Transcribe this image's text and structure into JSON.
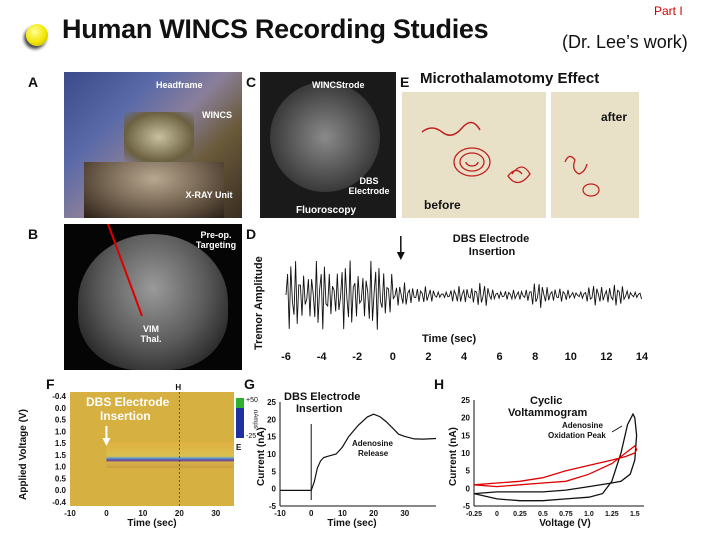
{
  "header": {
    "title": "Human WINCS Recording Studies",
    "subtitle": "(Dr. Lee’s work)",
    "part": "Part I"
  },
  "panels": {
    "A": {
      "letter": "A",
      "headframe": "Headframe",
      "wincs": "WINCS",
      "xray": "X-RAY Unit"
    },
    "B": {
      "letter": "B",
      "preop": "Pre-op. Targeting",
      "vim": "VIM Thal."
    },
    "C": {
      "letter": "C",
      "wincstrode": "WINCStrode",
      "dbs": "DBS Electrode",
      "fluoro": "Fluoroscopy"
    },
    "D": {
      "letter": "D"
    },
    "E": {
      "letter": "E",
      "title": "Microthalamotomy Effect",
      "before": "before",
      "after": "after"
    },
    "F": {
      "letter": "F"
    },
    "G": {
      "letter": "G"
    },
    "H": {
      "letter": "H"
    }
  },
  "chart_data": [
    {
      "panel": "D",
      "type": "line",
      "title": "",
      "xlabel": "Time (sec)",
      "ylabel": "Tremor Amplitude",
      "xlim": [
        -6,
        14
      ],
      "xticks": [
        -6,
        -4,
        -2,
        0,
        2,
        4,
        6,
        8,
        10,
        12,
        14
      ],
      "annotation": "DBS Electrode Insertion",
      "annotation_x": 0,
      "pre_insertion_amplitude": 1.0,
      "post_insertion_amplitude": 0.25
    },
    {
      "panel": "F",
      "type": "heatmap",
      "title": "",
      "xlabel": "Time (sec)",
      "ylabel": "Applied Voltage (V)",
      "xlim": [
        -10,
        35
      ],
      "xticks": [
        -10,
        0,
        10,
        20,
        30
      ],
      "yticks": [
        "-0.4",
        "0.0",
        "0.5",
        "1.0",
        "1.5",
        "1.5",
        "1.0",
        "0.5",
        "0.0",
        "-0.4"
      ],
      "colorbar_ticks": [
        "+50",
        "-25"
      ],
      "colorbar_label": "nAmps",
      "annotation": "DBS Electrode Insertion",
      "annotation_x": 0,
      "marker_top": "H",
      "marker_side": "E"
    },
    {
      "panel": "G",
      "type": "line",
      "title": "",
      "xlabel": "Time (sec)",
      "ylabel": "Current (nA)",
      "xlim": [
        -10,
        40
      ],
      "ylim": [
        -5,
        25
      ],
      "xticks": [
        -10,
        0,
        10,
        20,
        30
      ],
      "yticks": [
        -5,
        0,
        5,
        10,
        15,
        20,
        25
      ],
      "annotations": [
        "DBS Electrode Insertion",
        "Adenosine Release"
      ],
      "series": [
        {
          "x": [
            -10,
            -5,
            0,
            1,
            2,
            3,
            4,
            6,
            8,
            10,
            12,
            15,
            18,
            20,
            22,
            24,
            26,
            28,
            30,
            33,
            36,
            40
          ],
          "y": [
            -0.5,
            -0.5,
            -0.5,
            2,
            6,
            8,
            9,
            9.5,
            10,
            12,
            15,
            19,
            21,
            21,
            20,
            19,
            18,
            16.5,
            15.5,
            14,
            13.5,
            14
          ]
        }
      ]
    },
    {
      "panel": "H",
      "type": "line",
      "title": "Cyclic Voltammogram",
      "xlabel": "Voltage (V)",
      "ylabel": "Current (nA)",
      "xlim": [
        -0.25,
        1.6
      ],
      "ylim": [
        -5,
        25
      ],
      "xticks": [
        "-0.25",
        "0",
        "0.25",
        "0.5",
        "0.75",
        "1.0",
        "1.25",
        "1.5"
      ],
      "yticks": [
        -5,
        0,
        5,
        10,
        15,
        20,
        25
      ],
      "annotation": "Adenosine Oxidation Peak",
      "series": [
        {
          "color": "#111111",
          "x": [
            -0.25,
            0,
            0.25,
            0.5,
            0.75,
            1.0,
            1.15,
            1.25,
            1.35,
            1.42,
            1.48,
            1.5,
            1.52,
            1.5,
            1.45,
            1.35,
            1.25,
            1.0,
            0.75,
            0.5,
            0.25,
            0,
            -0.25
          ],
          "y": [
            -1.5,
            -3,
            -3.5,
            -3.5,
            -3,
            -2.5,
            -1.5,
            2,
            10,
            18,
            21,
            20,
            15,
            8,
            4,
            2,
            1.5,
            0.5,
            -0.5,
            -1,
            -1,
            -1,
            -1.5
          ]
        },
        {
          "color": "#e00000",
          "x": [
            -0.25,
            0,
            0.25,
            0.5,
            0.75,
            1.0,
            1.25,
            1.4,
            1.5,
            1.52,
            1.5,
            1.4,
            1.25,
            1.0,
            0.75,
            0.5,
            0.25,
            0,
            -0.25
          ],
          "y": [
            1,
            0.5,
            1,
            1.5,
            2,
            4,
            7,
            10,
            12,
            11,
            10,
            9,
            8,
            6.5,
            5,
            3,
            2,
            1.5,
            1
          ]
        }
      ]
    }
  ]
}
